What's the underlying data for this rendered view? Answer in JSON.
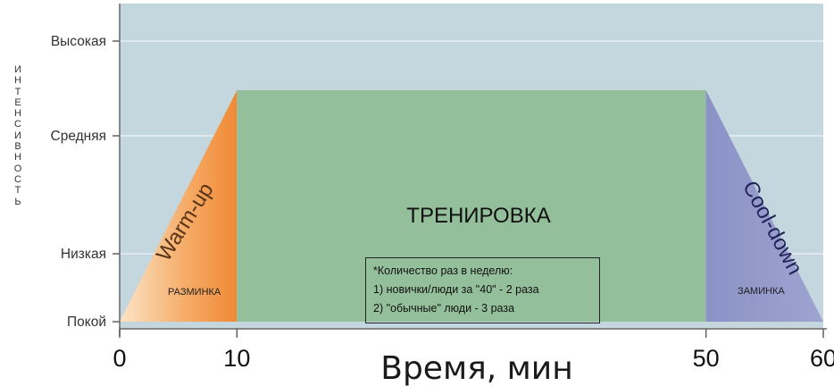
{
  "chart_data": {
    "type": "area",
    "title": "",
    "xlabel": "Время, мин",
    "ylabel": "ИНТЕНСИВНОСТЬ",
    "x_ticks": [
      0,
      10,
      50,
      60
    ],
    "xlim": [
      0,
      60
    ],
    "y_levels": [
      "Покой",
      "Низкая",
      "Средняя",
      "Высокая"
    ],
    "phases": [
      {
        "name": "warm-up",
        "label_en": "Warm-up",
        "label_ru": "РАЗМИНКА",
        "x": [
          0,
          10
        ],
        "y": [
          0,
          2.5
        ],
        "color": "#f4a15e"
      },
      {
        "name": "workout",
        "label_ru": "ТРЕНИРОВКА",
        "x": [
          10,
          50
        ],
        "y": [
          2.5,
          2.5
        ],
        "color": "#94bf9b"
      },
      {
        "name": "cool-down",
        "label_en": "Cool-down",
        "label_ru": "ЗАМИНКА",
        "x": [
          50,
          60
        ],
        "y": [
          2.5,
          0
        ],
        "color": "#8f96c8"
      }
    ],
    "note": [
      "*Количество раз в неделю:",
      "1) новички/люди за \"40\" - 2 раза",
      "2) \"обычные\" люди - 3 раза"
    ],
    "grid": true,
    "background": "#c4d6de"
  }
}
